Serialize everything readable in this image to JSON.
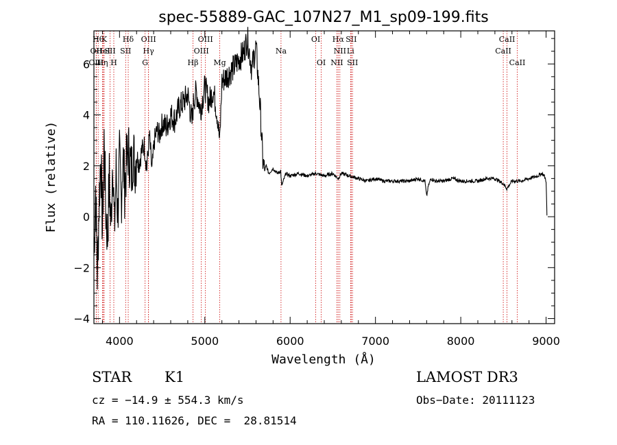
{
  "chart_data": {
    "type": "line",
    "title": "spec-55889-GAC_107N27_M1_sp09-199.fits",
    "xlabel": "Wavelength (Å)",
    "ylabel": "Flux (relative)",
    "xlim": [
      3700,
      9100
    ],
    "ylim": [
      -4.2,
      7.3
    ],
    "xticks": [
      4000,
      5000,
      6000,
      7000,
      8000,
      9000
    ],
    "yticks": [
      -4,
      -2,
      0,
      2,
      4,
      6
    ],
    "grid": false,
    "series": [
      {
        "x": [
          3700,
          3720,
          3740,
          3760,
          3780,
          3800,
          3820,
          3840,
          3860,
          3880,
          3900,
          3920,
          3940,
          3960,
          3980,
          4000,
          4020,
          4040,
          4060,
          4080,
          4100,
          4120,
          4140,
          4160,
          4180,
          4200,
          4230,
          4260,
          4290,
          4320,
          4350,
          4380,
          4410,
          4440,
          4470,
          4500,
          4550,
          4600,
          4650,
          4700,
          4750,
          4800,
          4850,
          4870,
          4900,
          4950,
          5000,
          5050,
          5100,
          5150,
          5175,
          5200,
          5250,
          5300,
          5350,
          5400,
          5450,
          5500,
          5550,
          5600,
          5630,
          5650,
          5680,
          5700,
          5720,
          5750,
          5800,
          5850,
          5890,
          5900,
          5950,
          6000,
          6100,
          6200,
          6300,
          6400,
          6500,
          6563,
          6600,
          6700,
          6800,
          6900,
          7000,
          7100,
          7200,
          7300,
          7400,
          7500,
          7580,
          7600,
          7620,
          7650,
          7700,
          7800,
          7900,
          8000,
          8100,
          8200,
          8300,
          8400,
          8500,
          8540,
          8600,
          8700,
          8800,
          8900,
          8950,
          8980,
          9000,
          9010
        ],
        "values": [
          -1.5,
          1.2,
          -2.3,
          0.5,
          2.5,
          -0.5,
          3.0,
          0.2,
          -0.8,
          1.5,
          -0.5,
          2.6,
          -0.6,
          1.8,
          0.1,
          2.2,
          0.6,
          2.5,
          1.2,
          2.0,
          2.6,
          2.3,
          1.7,
          2.6,
          2.0,
          2.4,
          2.1,
          2.6,
          2.8,
          1.9,
          3.2,
          1.8,
          3.0,
          3.4,
          3.2,
          3.7,
          3.5,
          4.0,
          3.8,
          4.3,
          4.5,
          4.8,
          3.7,
          4.6,
          4.9,
          4.2,
          5.1,
          4.5,
          5.0,
          3.9,
          2.9,
          5.3,
          5.5,
          5.7,
          5.9,
          6.2,
          6.4,
          7.0,
          5.8,
          6.7,
          5.2,
          4.2,
          2.2,
          1.8,
          2.0,
          1.7,
          1.9,
          1.7,
          1.8,
          1.2,
          1.7,
          1.6,
          1.7,
          1.6,
          1.7,
          1.6,
          1.7,
          1.5,
          1.7,
          1.6,
          1.5,
          1.4,
          1.5,
          1.4,
          1.4,
          1.4,
          1.4,
          1.5,
          1.4,
          0.8,
          1.2,
          1.5,
          1.4,
          1.4,
          1.5,
          1.4,
          1.4,
          1.4,
          1.5,
          1.5,
          1.3,
          1.1,
          1.4,
          1.4,
          1.5,
          1.6,
          1.7,
          1.6,
          1.4,
          0.05
        ]
      }
    ],
    "lines": [
      {
        "x": 3750,
        "label": "Hθ",
        "row": 0
      },
      {
        "x": 3727,
        "label": "OII",
        "row": 1
      },
      {
        "x": 3727,
        "label": "OIII",
        "row": 2
      },
      {
        "x": 3820,
        "label": "K",
        "row": 0
      },
      {
        "x": 3810,
        "label": "HeI",
        "row": 1
      },
      {
        "x": 3800,
        "label": "Hη",
        "row": 2
      },
      {
        "x": 3933,
        "label": "H",
        "row": 2
      },
      {
        "x": 3890,
        "label": "SII",
        "row": 1
      },
      {
        "x": 4102,
        "label": "Hδ",
        "row": 0
      },
      {
        "x": 4072,
        "label": "SII",
        "row": 1
      },
      {
        "x": 4340,
        "label": "OIII",
        "row": 0
      },
      {
        "x": 4340,
        "label": "Hγ",
        "row": 1
      },
      {
        "x": 4300,
        "label": "G",
        "row": 2
      },
      {
        "x": 4861,
        "label": "Hβ",
        "row": 2
      },
      {
        "x": 5007,
        "label": "OIII",
        "row": 0
      },
      {
        "x": 4959,
        "label": "OIII",
        "row": 1
      },
      {
        "x": 5175,
        "label": "Mg",
        "row": 2
      },
      {
        "x": 5893,
        "label": "Na",
        "row": 1
      },
      {
        "x": 6300,
        "label": "OI",
        "row": 0
      },
      {
        "x": 6364,
        "label": "OI",
        "row": 2
      },
      {
        "x": 6563,
        "label": "Hα",
        "row": 0
      },
      {
        "x": 6583,
        "label": "NII",
        "row": 1
      },
      {
        "x": 6548,
        "label": "NII",
        "row": 2
      },
      {
        "x": 6716,
        "label": "SII",
        "row": 0
      },
      {
        "x": 6708,
        "label": "Li",
        "row": 1
      },
      {
        "x": 6731,
        "label": "SII",
        "row": 2
      },
      {
        "x": 8542,
        "label": "CaII",
        "row": 0
      },
      {
        "x": 8498,
        "label": "CaII",
        "row": 1
      },
      {
        "x": 8662,
        "label": "CaII",
        "row": 2
      }
    ]
  },
  "info": {
    "class": "STAR",
    "subclass": "K1",
    "survey": "LAMOST DR3",
    "cz": "cz = −14.9 ± 554.3 km/s",
    "obs_date": "Obs−Date: 20111123",
    "coords": "RA = 110.11626, DEC =  28.81514"
  },
  "colors": {
    "spectrum": "#000000",
    "line_markers": "#cc0000"
  }
}
